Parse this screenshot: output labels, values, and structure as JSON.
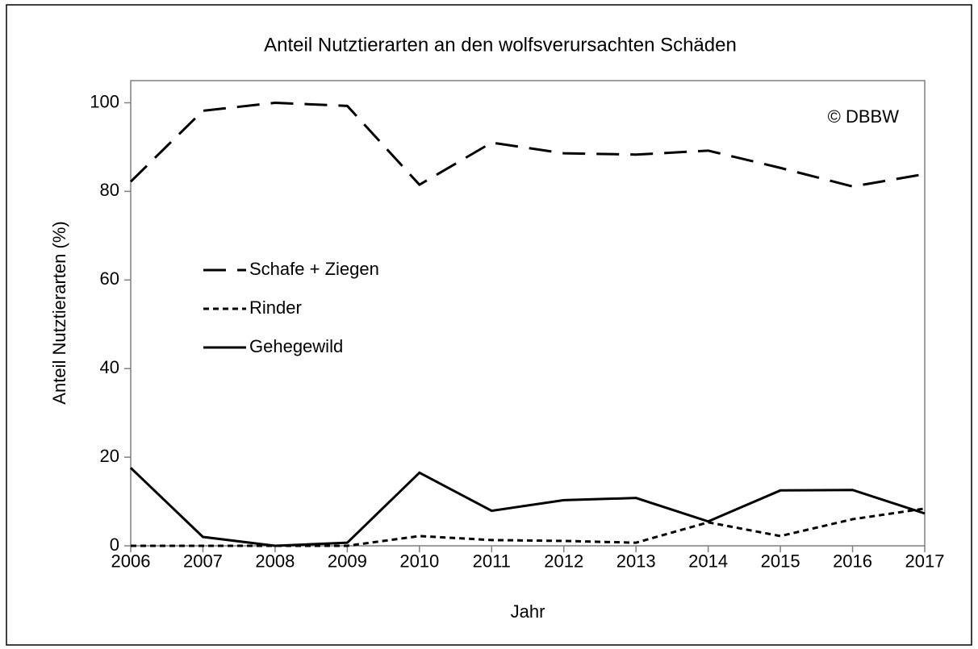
{
  "chart_data": {
    "type": "line",
    "title": "Anteil Nutztierarten an den wolfsverursachten Schäden",
    "x_label": "Jahr",
    "y_label": "Anteil Nutztierarten (%)",
    "annotation": "© DBBW",
    "x": [
      2006,
      2007,
      2008,
      2009,
      2010,
      2011,
      2012,
      2013,
      2014,
      2015,
      2016,
      2017
    ],
    "xlim": [
      2006,
      2017
    ],
    "xticks": [
      2006,
      2007,
      2008,
      2009,
      2010,
      2011,
      2012,
      2013,
      2014,
      2015,
      2016,
      2017
    ],
    "ylim": [
      0,
      105
    ],
    "yticks": [
      0,
      20,
      40,
      60,
      80,
      100
    ],
    "legend": "left",
    "series": [
      {
        "name": "Schafe + Ziegen",
        "color": "#000000",
        "dash": "dashed",
        "values": [
          82.2,
          98.2,
          100,
          99.3,
          81.5,
          91,
          88.6,
          88.3,
          89.2,
          85.3,
          81.1,
          83.9
        ]
      },
      {
        "name": "Rinder",
        "color": "#000000",
        "dash": "dotted",
        "values": [
          0,
          0,
          0,
          0,
          2.2,
          1.3,
          1.1,
          0.7,
          5.3,
          2.2,
          6.0,
          8.4
        ]
      },
      {
        "name": "Gehegewild",
        "color": "#000000",
        "dash": "solid",
        "values": [
          17.6,
          2.0,
          0,
          0.7,
          16.5,
          7.9,
          10.3,
          10.8,
          5.5,
          12.5,
          12.6,
          7.3
        ]
      }
    ]
  }
}
